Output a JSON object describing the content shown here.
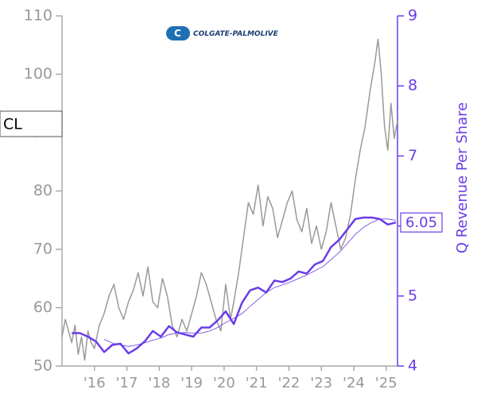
{
  "ticker": "CL",
  "logo": "COLGATE-PALMOLIVE",
  "chart_data": {
    "type": "line",
    "y2label": "Q Revenue Per Share",
    "xlim": [
      2015.0,
      2025.35
    ],
    "xticks": [
      {
        "value": 2016,
        "label": "'16"
      },
      {
        "value": 2017,
        "label": "'17"
      },
      {
        "value": 2018,
        "label": "'18"
      },
      {
        "value": 2019,
        "label": "'19"
      },
      {
        "value": 2020,
        "label": "'20"
      },
      {
        "value": 2021,
        "label": "'21"
      },
      {
        "value": 2022,
        "label": "'22"
      },
      {
        "value": 2023,
        "label": "'23"
      },
      {
        "value": 2024,
        "label": "'24"
      },
      {
        "value": 2025,
        "label": "'25"
      }
    ],
    "ylim": [
      50,
      110
    ],
    "yticks": [
      50,
      60,
      70,
      80,
      90,
      100,
      110
    ],
    "y2lim": [
      4,
      9
    ],
    "y2ticks": [
      4,
      5,
      6,
      7,
      8,
      9
    ],
    "series": [
      {
        "color": "#999999",
        "axis": "y",
        "width": 1.5,
        "x": [
          2015.0,
          2015.1,
          2015.2,
          2015.3,
          2015.4,
          2015.5,
          2015.6,
          2015.7,
          2015.8,
          2015.9,
          2016.0,
          2016.15,
          2016.3,
          2016.45,
          2016.6,
          2016.75,
          2016.9,
          2017.05,
          2017.2,
          2017.35,
          2017.5,
          2017.65,
          2017.8,
          2017.95,
          2018.1,
          2018.25,
          2018.4,
          2018.55,
          2018.7,
          2018.85,
          2019.0,
          2019.15,
          2019.3,
          2019.45,
          2019.6,
          2019.75,
          2019.9,
          2020.05,
          2020.2,
          2020.3,
          2020.45,
          2020.6,
          2020.75,
          2020.9,
          2021.05,
          2021.2,
          2021.35,
          2021.5,
          2021.65,
          2021.8,
          2021.95,
          2022.1,
          2022.25,
          2022.4,
          2022.55,
          2022.7,
          2022.85,
          2023.0,
          2023.15,
          2023.3,
          2023.45,
          2023.6,
          2023.75,
          2023.9,
          2024.05,
          2024.2,
          2024.35,
          2024.5,
          2024.65,
          2024.75,
          2024.85,
          2024.95,
          2025.05,
          2025.15,
          2025.25,
          2025.35
        ],
        "values": [
          55,
          58,
          56,
          54,
          57,
          52,
          55,
          51,
          56,
          54,
          53,
          57,
          59,
          62,
          64,
          60,
          58,
          61,
          63,
          66,
          62,
          67,
          61,
          60,
          65,
          62,
          57,
          55,
          58,
          56,
          59,
          62,
          66,
          64,
          61,
          58,
          56,
          64,
          58,
          61,
          66,
          72,
          78,
          76,
          81,
          74,
          79,
          77,
          72,
          75,
          78,
          80,
          75,
          73,
          77,
          71,
          74,
          70,
          73,
          78,
          74,
          70,
          72,
          76,
          82,
          87,
          91,
          97,
          102,
          106,
          100,
          91,
          87,
          95,
          89,
          92
        ]
      },
      {
        "color": "#6a3ce8",
        "axis": "y2",
        "width": 2.5,
        "x": [
          2015.3,
          2015.55,
          2015.8,
          2016.05,
          2016.3,
          2016.55,
          2016.8,
          2017.05,
          2017.3,
          2017.55,
          2017.8,
          2018.05,
          2018.3,
          2018.55,
          2018.8,
          2019.05,
          2019.3,
          2019.55,
          2019.8,
          2020.05,
          2020.3,
          2020.55,
          2020.8,
          2021.05,
          2021.3,
          2021.55,
          2021.8,
          2022.05,
          2022.3,
          2022.55,
          2022.8,
          2023.05,
          2023.3,
          2023.55,
          2023.8,
          2024.05,
          2024.3,
          2024.55,
          2024.8,
          2025.05,
          2025.3
        ],
        "values": [
          4.47,
          4.47,
          4.42,
          4.35,
          4.2,
          4.3,
          4.32,
          4.18,
          4.25,
          4.35,
          4.5,
          4.42,
          4.57,
          4.48,
          4.45,
          4.42,
          4.55,
          4.55,
          4.65,
          4.78,
          4.6,
          4.9,
          5.08,
          5.12,
          5.05,
          5.22,
          5.2,
          5.25,
          5.35,
          5.32,
          5.45,
          5.5,
          5.7,
          5.8,
          5.95,
          6.1,
          6.12,
          6.12,
          6.1,
          6.02,
          6.05
        ]
      },
      {
        "color": "#6a3ce8",
        "axis": "y2",
        "width": 0.8,
        "x": [
          2015.3,
          2015.55,
          2015.8,
          2016.05,
          2016.3,
          2016.55,
          2016.8,
          2017.05,
          2017.3,
          2017.55,
          2017.8,
          2018.05,
          2018.3,
          2018.55,
          2018.8,
          2019.05,
          2019.3,
          2019.55,
          2019.8,
          2020.05,
          2020.3,
          2020.55,
          2020.8,
          2021.05,
          2021.3,
          2021.55,
          2021.8,
          2022.05,
          2022.3,
          2022.55,
          2022.8,
          2023.05,
          2023.3,
          2023.55,
          2023.8,
          2024.05,
          2024.3,
          2024.55,
          2024.8,
          2025.05,
          2025.3
        ],
        "values": [
          null,
          null,
          null,
          null,
          4.38,
          4.33,
          4.3,
          4.28,
          4.3,
          4.33,
          4.37,
          4.4,
          4.45,
          4.47,
          4.48,
          4.47,
          4.47,
          4.5,
          4.55,
          4.62,
          4.68,
          4.75,
          4.85,
          4.95,
          5.05,
          5.12,
          5.16,
          5.2,
          5.25,
          5.3,
          5.36,
          5.42,
          5.52,
          5.62,
          5.75,
          5.88,
          5.98,
          6.05,
          6.1,
          6.1,
          6.08
        ]
      }
    ]
  }
}
